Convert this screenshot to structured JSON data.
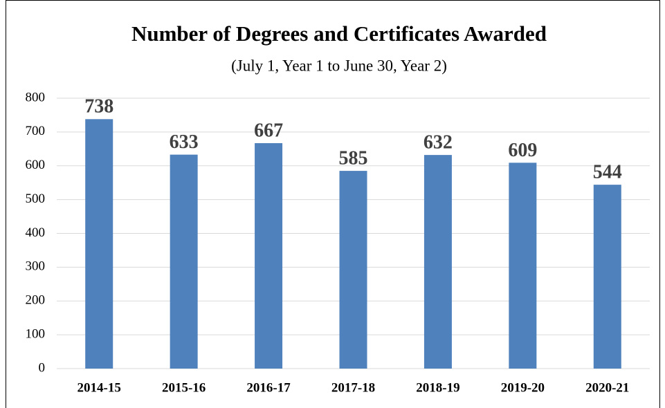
{
  "chart_data": {
    "type": "bar",
    "title": "Number of Degrees and Certificates Awarded",
    "subtitle": "(July 1, Year 1 to June 30, Year 2)",
    "categories": [
      "2014-15",
      "2015-16",
      "2016-17",
      "2017-18",
      "2018-19",
      "2019-20",
      "2020-21"
    ],
    "values": [
      738,
      633,
      667,
      585,
      632,
      609,
      544
    ],
    "color": "#4f81bd",
    "ylim": [
      0,
      800
    ],
    "yticks": [
      0,
      100,
      200,
      300,
      400,
      500,
      600,
      700,
      800
    ],
    "grid": true
  }
}
